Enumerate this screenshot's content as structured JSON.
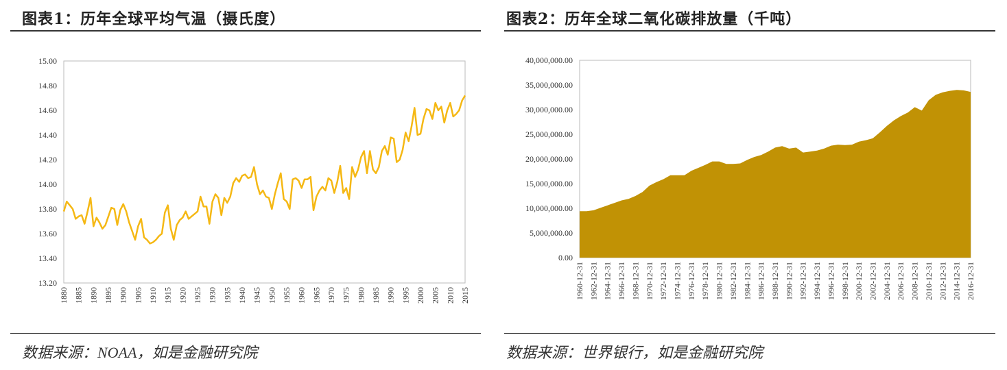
{
  "chart_data": [
    {
      "type": "line",
      "title": "图表1：历年全球平均气温（摄氏度）",
      "source": "数据来源：NOAA，如是金融研究院",
      "xlabel": "",
      "ylabel": "",
      "ylim": [
        13.2,
        15.0
      ],
      "yticks": [
        "15.00",
        "14.80",
        "14.60",
        "14.40",
        "14.20",
        "14.00",
        "13.80",
        "13.60",
        "13.40",
        "13.20"
      ],
      "xticks": [
        "1880",
        "1885",
        "1890",
        "1895",
        "1900",
        "1905",
        "1910",
        "1915",
        "1920",
        "1925",
        "1930",
        "1935",
        "1940",
        "1945",
        "1950",
        "1955",
        "1960",
        "1965",
        "1970",
        "1975",
        "1980",
        "1985",
        "1990",
        "1995",
        "2000",
        "2005",
        "2010",
        "2015"
      ],
      "x_start": 1880,
      "color": "#F5B814",
      "values": [
        13.78,
        13.86,
        13.83,
        13.8,
        13.72,
        13.74,
        13.75,
        13.68,
        13.78,
        13.89,
        13.66,
        13.73,
        13.69,
        13.64,
        13.67,
        13.74,
        13.81,
        13.8,
        13.67,
        13.79,
        13.84,
        13.78,
        13.69,
        13.62,
        13.55,
        13.66,
        13.72,
        13.57,
        13.55,
        13.52,
        13.53,
        13.55,
        13.58,
        13.6,
        13.77,
        13.83,
        13.64,
        13.55,
        13.67,
        13.71,
        13.73,
        13.78,
        13.72,
        13.74,
        13.76,
        13.78,
        13.9,
        13.82,
        13.82,
        13.68,
        13.86,
        13.92,
        13.89,
        13.75,
        13.89,
        13.85,
        13.9,
        14.01,
        14.05,
        14.02,
        14.07,
        14.08,
        14.05,
        14.06,
        14.14,
        14.0,
        13.92,
        13.95,
        13.9,
        13.89,
        13.8,
        13.92,
        14.01,
        14.09,
        13.88,
        13.86,
        13.8,
        14.04,
        14.05,
        14.03,
        13.97,
        14.04,
        14.04,
        14.06,
        13.79,
        13.9,
        13.95,
        13.98,
        13.95,
        14.05,
        14.03,
        13.93,
        14.02,
        14.15,
        13.93,
        13.97,
        13.88,
        14.14,
        14.06,
        14.12,
        14.22,
        14.27,
        14.09,
        14.27,
        14.12,
        14.09,
        14.14,
        14.27,
        14.31,
        14.24,
        14.38,
        14.37,
        14.18,
        14.2,
        14.28,
        14.42,
        14.35,
        14.47,
        14.62,
        14.4,
        14.41,
        14.53,
        14.61,
        14.6,
        14.53,
        14.66,
        14.6,
        14.63,
        14.5,
        14.6,
        14.66,
        14.55,
        14.57,
        14.6,
        14.68,
        14.72
      ]
    },
    {
      "type": "area",
      "title": "图表2：历年全球二氧化碳排放量（千吨）",
      "source": "数据来源：世界银行，如是金融研究院",
      "xlabel": "",
      "ylabel": "",
      "ylim": [
        0,
        40000000
      ],
      "yticks": [
        "40,000,000.00",
        "35,000,000.00",
        "30,000,000.00",
        "25,000,000.00",
        "20,000,000.00",
        "15,000,000.00",
        "10,000,000.00",
        "5,000,000.00",
        "0.00"
      ],
      "xticks": [
        "1960-12-31",
        "1962-12-31",
        "1964-12-31",
        "1966-12-31",
        "1968-12-31",
        "1970-12-31",
        "1972-12-31",
        "1974-12-31",
        "1976-12-31",
        "1978-12-31",
        "1980-12-31",
        "1982-12-31",
        "1984-12-31",
        "1986-12-31",
        "1988-12-31",
        "1990-12-31",
        "1992-12-31",
        "1994-12-31",
        "1996-12-31",
        "1998-12-31",
        "2000-12-31",
        "2002-12-31",
        "2004-12-31",
        "2006-12-31",
        "2008-12-31",
        "2010-12-31",
        "2012-12-31",
        "2014-12-31",
        "2016-12-31"
      ],
      "x_start": 1960,
      "color": "#C19205",
      "values": [
        9400000,
        9400000,
        9600000,
        10100000,
        10600000,
        11100000,
        11600000,
        11900000,
        12500000,
        13300000,
        14600000,
        15300000,
        15900000,
        16700000,
        16700000,
        16700000,
        17600000,
        18200000,
        18800000,
        19500000,
        19500000,
        19000000,
        19000000,
        19100000,
        19800000,
        20400000,
        20800000,
        21500000,
        22300000,
        22600000,
        22100000,
        22300000,
        21300000,
        21500000,
        21700000,
        22100000,
        22700000,
        22900000,
        22800000,
        22900000,
        23500000,
        23800000,
        24200000,
        25400000,
        26700000,
        27800000,
        28700000,
        29400000,
        30500000,
        29800000,
        31900000,
        33000000,
        33500000,
        33800000,
        34000000,
        33900000,
        33600000
      ]
    }
  ]
}
